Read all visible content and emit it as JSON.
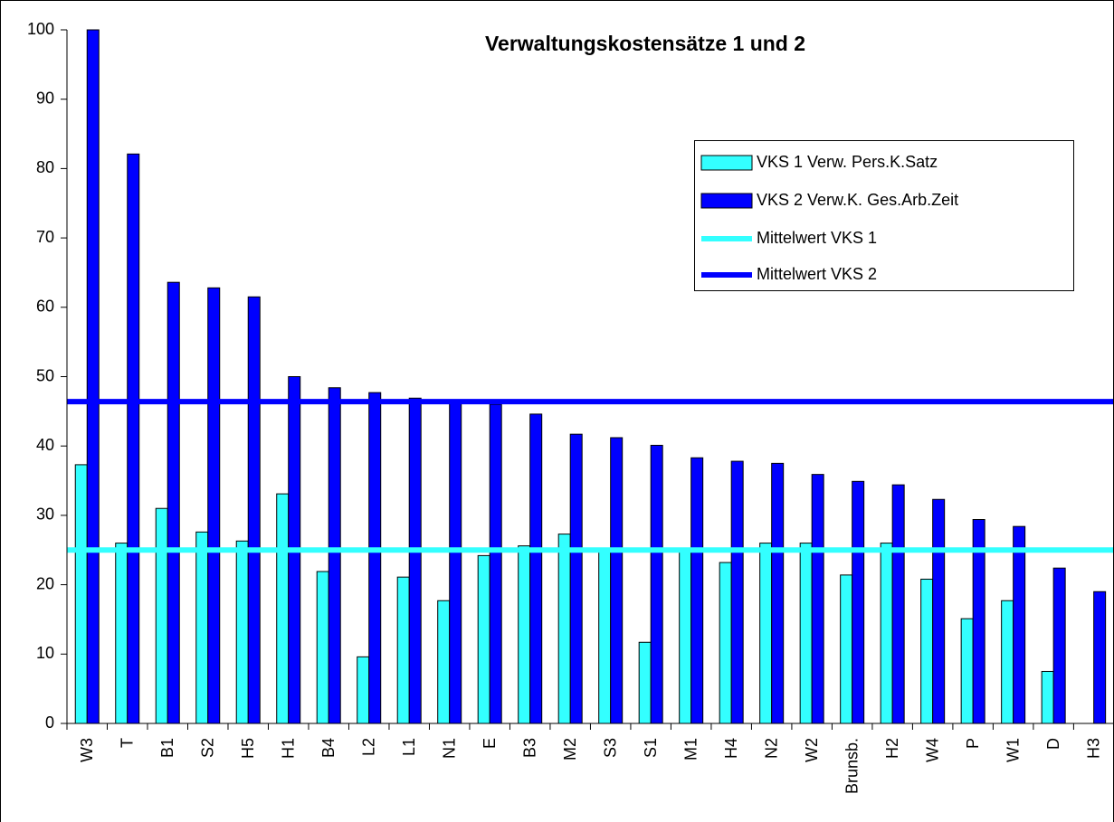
{
  "chart_data": {
    "type": "bar",
    "title": "Verwaltungskostensätze 1 und 2",
    "categories": [
      "W3",
      "T",
      "B1",
      "S2",
      "H5",
      "H1",
      "B4",
      "L2",
      "L1",
      "N1",
      "E",
      "B3",
      "M2",
      "S3",
      "S1",
      "M1",
      "H4",
      "N2",
      "W2",
      "Brunsb.",
      "H2",
      "W4",
      "P",
      "W1",
      "D",
      "H3"
    ],
    "series": [
      {
        "name": "VKS 1 Verw. Pers.K.Satz",
        "color": "#33ffff",
        "values": [
          37.3,
          26,
          31,
          27.6,
          26.3,
          33.1,
          21.9,
          9.6,
          21.1,
          17.7,
          24.2,
          25.6,
          27.3,
          25,
          11.7,
          25,
          23.2,
          26,
          26,
          21.4,
          26,
          20.8,
          15.1,
          17.7,
          7.5,
          0
        ]
      },
      {
        "name": "VKS 2 Verw.K. Ges.Arb.Zeit",
        "color": "#0000ff",
        "values": [
          100,
          82.1,
          63.6,
          62.8,
          61.5,
          50,
          48.4,
          47.7,
          46.9,
          46.2,
          46,
          44.6,
          41.7,
          41.2,
          40.1,
          38.3,
          37.8,
          37.5,
          35.9,
          34.9,
          34.4,
          32.3,
          29.4,
          28.4,
          22.4,
          19
        ]
      }
    ],
    "mean_lines": [
      {
        "name": "Mittelwert VKS 1",
        "color": "#33ffff",
        "value": 25
      },
      {
        "name": "Mittelwert VKS 2",
        "color": "#0000ff",
        "value": 46.4
      }
    ],
    "ylim": [
      0,
      100
    ],
    "yticks": [
      0,
      10,
      20,
      30,
      40,
      50,
      60,
      70,
      80,
      90,
      100
    ],
    "grid": false
  }
}
